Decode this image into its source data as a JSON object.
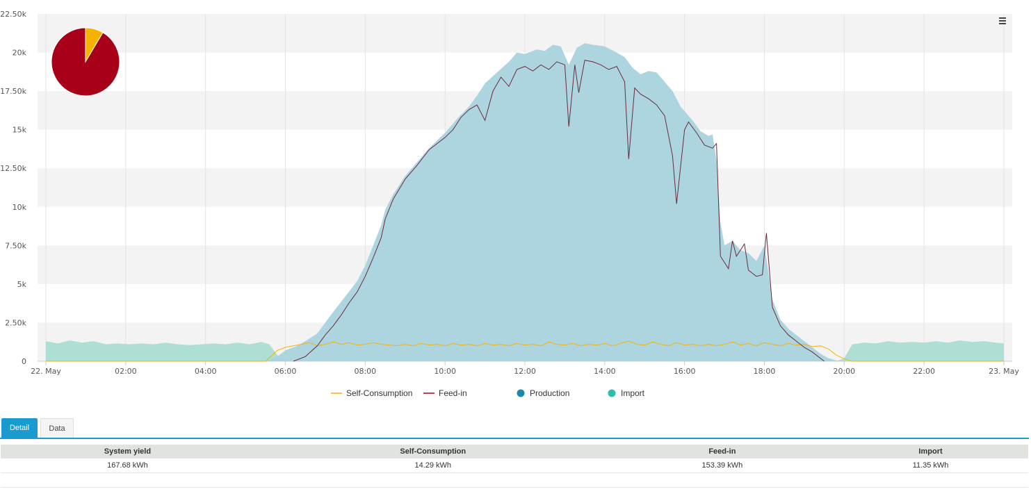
{
  "chart_data": {
    "type": "area",
    "y_ticks": [
      "0",
      "2.50k",
      "5k",
      "7.50k",
      "10k",
      "12.50k",
      "15k",
      "17.50k",
      "20k",
      "22.50k"
    ],
    "ylim": [
      0,
      22500
    ],
    "x_ticks": [
      "22. May",
      "02:00",
      "04:00",
      "06:00",
      "08:00",
      "10:00",
      "12:00",
      "14:00",
      "16:00",
      "18:00",
      "20:00",
      "22:00",
      "23. May"
    ],
    "x_tick_hours": [
      0,
      2,
      4,
      6,
      8,
      10,
      12,
      14,
      16,
      18,
      20,
      22,
      24
    ],
    "xlim_hours": [
      0,
      24
    ],
    "legend": [
      {
        "name": "Self-Consumption",
        "symbol": "line",
        "color": "#f5b300"
      },
      {
        "name": "Feed-in",
        "symbol": "line",
        "color": "#a80018"
      },
      {
        "name": "Production",
        "symbol": "circle",
        "color": "#1a8aa8"
      },
      {
        "name": "Import",
        "symbol": "circle",
        "color": "#2bbfa8"
      }
    ],
    "series": [
      {
        "name": "Production",
        "kind": "area",
        "color": "#a9d3de",
        "points": [
          [
            5.5,
            0
          ],
          [
            5.8,
            300
          ],
          [
            6.0,
            700
          ],
          [
            6.3,
            1000
          ],
          [
            6.5,
            1300
          ],
          [
            6.8,
            1800
          ],
          [
            7.0,
            2500
          ],
          [
            7.2,
            3200
          ],
          [
            7.5,
            4200
          ],
          [
            7.8,
            5200
          ],
          [
            8.0,
            6200
          ],
          [
            8.2,
            7500
          ],
          [
            8.4,
            8800
          ],
          [
            8.5,
            9800
          ],
          [
            8.7,
            10800
          ],
          [
            9.0,
            12000
          ],
          [
            9.3,
            12900
          ],
          [
            9.6,
            13800
          ],
          [
            10.0,
            14800
          ],
          [
            10.3,
            15700
          ],
          [
            10.6,
            16500
          ],
          [
            10.8,
            17200
          ],
          [
            11.0,
            18000
          ],
          [
            11.3,
            18700
          ],
          [
            11.6,
            19400
          ],
          [
            11.8,
            20000
          ],
          [
            12.0,
            19900
          ],
          [
            12.3,
            20200
          ],
          [
            12.5,
            20100
          ],
          [
            12.7,
            20500
          ],
          [
            12.9,
            20400
          ],
          [
            13.1,
            19200
          ],
          [
            13.3,
            20300
          ],
          [
            13.5,
            20600
          ],
          [
            13.7,
            20500
          ],
          [
            14.0,
            20400
          ],
          [
            14.3,
            20000
          ],
          [
            14.5,
            19700
          ],
          [
            14.7,
            19000
          ],
          [
            14.9,
            18600
          ],
          [
            15.1,
            18800
          ],
          [
            15.3,
            18700
          ],
          [
            15.5,
            18100
          ],
          [
            15.7,
            17500
          ],
          [
            15.9,
            16500
          ],
          [
            16.0,
            16200
          ],
          [
            16.2,
            15600
          ],
          [
            16.4,
            14900
          ],
          [
            16.6,
            14600
          ],
          [
            16.7,
            14700
          ],
          [
            16.8,
            13000
          ],
          [
            16.9,
            9000
          ],
          [
            17.0,
            7500
          ],
          [
            17.2,
            7800
          ],
          [
            17.4,
            7200
          ],
          [
            17.6,
            7000
          ],
          [
            17.8,
            6500
          ],
          [
            18.0,
            7500
          ],
          [
            18.2,
            4000
          ],
          [
            18.4,
            2700
          ],
          [
            18.6,
            2100
          ],
          [
            18.8,
            1700
          ],
          [
            19.0,
            1300
          ],
          [
            19.2,
            900
          ],
          [
            19.4,
            500
          ],
          [
            19.6,
            200
          ],
          [
            19.8,
            50
          ],
          [
            20.0,
            0
          ]
        ]
      },
      {
        "name": "Import",
        "kind": "area",
        "color": "#a9ddd3",
        "points": [
          [
            0,
            1300
          ],
          [
            0.3,
            1150
          ],
          [
            0.6,
            1350
          ],
          [
            0.9,
            1200
          ],
          [
            1.2,
            1300
          ],
          [
            1.5,
            1100
          ],
          [
            1.8,
            1150
          ],
          [
            2.1,
            1100
          ],
          [
            2.4,
            1150
          ],
          [
            2.7,
            1100
          ],
          [
            3.0,
            1200
          ],
          [
            3.3,
            1100
          ],
          [
            3.6,
            1050
          ],
          [
            3.9,
            1100
          ],
          [
            4.2,
            1150
          ],
          [
            4.5,
            1100
          ],
          [
            4.8,
            1200
          ],
          [
            5.1,
            1100
          ],
          [
            5.4,
            1250
          ],
          [
            5.6,
            1100
          ],
          [
            5.8,
            400
          ],
          [
            6.0,
            100
          ],
          [
            6.2,
            0
          ],
          [
            19.8,
            0
          ],
          [
            20.0,
            200
          ],
          [
            20.2,
            1100
          ],
          [
            20.5,
            1200
          ],
          [
            20.8,
            1150
          ],
          [
            21.1,
            1300
          ],
          [
            21.4,
            1200
          ],
          [
            21.7,
            1250
          ],
          [
            22.0,
            1200
          ],
          [
            22.3,
            1300
          ],
          [
            22.6,
            1200
          ],
          [
            22.9,
            1350
          ],
          [
            23.2,
            1250
          ],
          [
            23.5,
            1300
          ],
          [
            23.8,
            1200
          ],
          [
            24,
            1150
          ],
          [
            24,
            0
          ]
        ]
      },
      {
        "name": "Feed-in",
        "kind": "line",
        "color": "#6b2a3a",
        "points": [
          [
            6.2,
            0
          ],
          [
            6.5,
            300
          ],
          [
            6.8,
            1000
          ],
          [
            7.0,
            1700
          ],
          [
            7.2,
            2300
          ],
          [
            7.4,
            3000
          ],
          [
            7.6,
            3800
          ],
          [
            7.8,
            4500
          ],
          [
            8.0,
            5500
          ],
          [
            8.2,
            6700
          ],
          [
            8.4,
            8000
          ],
          [
            8.5,
            9200
          ],
          [
            8.7,
            10500
          ],
          [
            9.0,
            11800
          ],
          [
            9.3,
            12700
          ],
          [
            9.6,
            13700
          ],
          [
            10.0,
            14500
          ],
          [
            10.2,
            15000
          ],
          [
            10.4,
            15800
          ],
          [
            10.6,
            16300
          ],
          [
            10.8,
            16600
          ],
          [
            11.0,
            15600
          ],
          [
            11.2,
            17500
          ],
          [
            11.4,
            18400
          ],
          [
            11.6,
            17800
          ],
          [
            11.8,
            18900
          ],
          [
            12.0,
            19100
          ],
          [
            12.2,
            18800
          ],
          [
            12.4,
            19200
          ],
          [
            12.6,
            18900
          ],
          [
            12.8,
            19400
          ],
          [
            13.0,
            19200
          ],
          [
            13.1,
            15200
          ],
          [
            13.25,
            19200
          ],
          [
            13.35,
            17400
          ],
          [
            13.5,
            19500
          ],
          [
            13.7,
            19400
          ],
          [
            13.9,
            19200
          ],
          [
            14.1,
            18900
          ],
          [
            14.3,
            19100
          ],
          [
            14.5,
            18100
          ],
          [
            14.6,
            13100
          ],
          [
            14.75,
            17700
          ],
          [
            14.9,
            17300
          ],
          [
            15.1,
            17000
          ],
          [
            15.3,
            16600
          ],
          [
            15.5,
            15900
          ],
          [
            15.7,
            13300
          ],
          [
            15.8,
            10200
          ],
          [
            16.0,
            15000
          ],
          [
            16.1,
            15500
          ],
          [
            16.3,
            14800
          ],
          [
            16.5,
            14000
          ],
          [
            16.7,
            13800
          ],
          [
            16.8,
            14100
          ],
          [
            16.9,
            6800
          ],
          [
            17.1,
            6000
          ],
          [
            17.2,
            7800
          ],
          [
            17.3,
            6800
          ],
          [
            17.5,
            7600
          ],
          [
            17.6,
            5900
          ],
          [
            17.8,
            5500
          ],
          [
            17.95,
            5600
          ],
          [
            18.05,
            8300
          ],
          [
            18.2,
            3500
          ],
          [
            18.4,
            2300
          ],
          [
            18.6,
            1700
          ],
          [
            18.8,
            1300
          ],
          [
            19.0,
            900
          ],
          [
            19.2,
            600
          ],
          [
            19.4,
            200
          ],
          [
            19.5,
            0
          ]
        ]
      },
      {
        "name": "Self-Consumption",
        "kind": "line",
        "color": "#f5b300",
        "points": [
          [
            0,
            0
          ],
          [
            5.5,
            0
          ],
          [
            5.8,
            700
          ],
          [
            6.0,
            900
          ],
          [
            6.2,
            1000
          ],
          [
            6.4,
            1100
          ],
          [
            6.6,
            1200
          ],
          [
            6.8,
            1000
          ],
          [
            7.0,
            1100
          ],
          [
            7.2,
            1250
          ],
          [
            7.4,
            1100
          ],
          [
            7.6,
            1200
          ],
          [
            7.8,
            1050
          ],
          [
            8.0,
            1100
          ],
          [
            8.2,
            1200
          ],
          [
            8.4,
            1100
          ],
          [
            8.6,
            1050
          ],
          [
            8.8,
            1000
          ],
          [
            9.0,
            1100
          ],
          [
            9.2,
            1000
          ],
          [
            9.4,
            1150
          ],
          [
            9.6,
            1050
          ],
          [
            9.8,
            1100
          ],
          [
            10.0,
            1000
          ],
          [
            10.2,
            1150
          ],
          [
            10.4,
            1050
          ],
          [
            10.6,
            1100
          ],
          [
            10.8,
            1000
          ],
          [
            11.0,
            1150
          ],
          [
            11.2,
            1050
          ],
          [
            11.4,
            1100
          ],
          [
            11.6,
            1000
          ],
          [
            11.8,
            1150
          ],
          [
            12.0,
            1050
          ],
          [
            12.2,
            1100
          ],
          [
            12.4,
            1000
          ],
          [
            12.6,
            1250
          ],
          [
            12.8,
            1100
          ],
          [
            13.0,
            1050
          ],
          [
            13.2,
            1150
          ],
          [
            13.4,
            1000
          ],
          [
            13.6,
            1100
          ],
          [
            13.8,
            1050
          ],
          [
            14.0,
            1150
          ],
          [
            14.2,
            1000
          ],
          [
            14.4,
            1150
          ],
          [
            14.6,
            1300
          ],
          [
            14.8,
            1100
          ],
          [
            15.0,
            1050
          ],
          [
            15.2,
            1250
          ],
          [
            15.4,
            1100
          ],
          [
            15.6,
            1000
          ],
          [
            15.8,
            1200
          ],
          [
            16.0,
            1050
          ],
          [
            16.2,
            1100
          ],
          [
            16.4,
            1000
          ],
          [
            16.6,
            1100
          ],
          [
            16.8,
            1000
          ],
          [
            17.0,
            1100
          ],
          [
            17.2,
            1250
          ],
          [
            17.4,
            1050
          ],
          [
            17.6,
            1150
          ],
          [
            17.8,
            1000
          ],
          [
            18.0,
            1200
          ],
          [
            18.2,
            1100
          ],
          [
            18.4,
            1000
          ],
          [
            18.6,
            1150
          ],
          [
            18.8,
            1050
          ],
          [
            19.0,
            1100
          ],
          [
            19.2,
            950
          ],
          [
            19.4,
            1000
          ],
          [
            19.6,
            800
          ],
          [
            19.8,
            400
          ],
          [
            20.0,
            150
          ],
          [
            20.2,
            0
          ],
          [
            24,
            0
          ]
        ]
      }
    ],
    "pie": [
      {
        "name": "Self-Consumption",
        "value": 14.29,
        "color": "#f5b300"
      },
      {
        "name": "Feed-in",
        "value": 153.39,
        "color": "#a80018"
      }
    ]
  },
  "tabs": {
    "detail": "Detail",
    "data": "Data"
  },
  "summary": {
    "headers": [
      "System yield",
      "Self-Consumption",
      "Feed-in",
      "Import"
    ],
    "values": [
      "167.68 kWh",
      "14.29 kWh",
      "153.39 kWh",
      "11.35 kWh"
    ]
  }
}
